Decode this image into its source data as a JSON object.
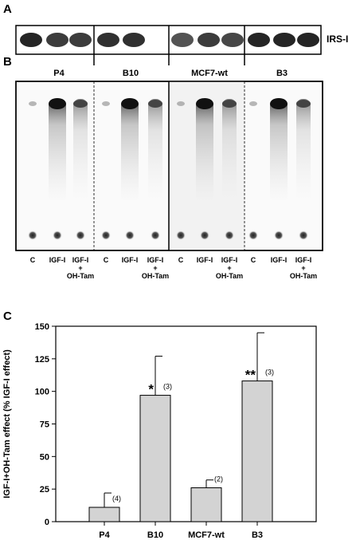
{
  "panels": {
    "a": {
      "letter": "A",
      "band_label": "IRS-I",
      "band_intensity": [
        0.95,
        0.85,
        0.85,
        0.9,
        0.9,
        0.75,
        0.85,
        0.8,
        0.95,
        0.95,
        0.95
      ]
    },
    "b": {
      "letter": "B",
      "groups": [
        "P4",
        "B10",
        "MCF7-wt",
        "B3"
      ],
      "lane_labels": [
        {
          "l1": "C",
          "l2": "",
          "l3": ""
        },
        {
          "l1": "IGF-I",
          "l2": "",
          "l3": ""
        },
        {
          "l1": "IGF-I",
          "l2": "+",
          "l3": "OH-Tam"
        }
      ]
    },
    "c": {
      "letter": "C"
    }
  },
  "chart_data": {
    "type": "bar",
    "ylabel": "IGF-I+OH-Tam effect (% IGF-I effect)",
    "xlabel": "",
    "ylim": [
      0,
      150
    ],
    "yticks": [
      "0",
      "25",
      "50",
      "75",
      "100",
      "125",
      "150"
    ],
    "categories": [
      "P4",
      "B10",
      "MCF7-wt",
      "B3"
    ],
    "values": [
      11,
      97,
      26,
      108
    ],
    "error_upper": [
      22,
      127,
      32,
      145
    ],
    "n_labels": [
      "(4)",
      "(3)",
      "(2)",
      "(3)"
    ],
    "significance": [
      "",
      "*",
      "",
      "**"
    ],
    "bar_color": "#d3d3d3"
  }
}
